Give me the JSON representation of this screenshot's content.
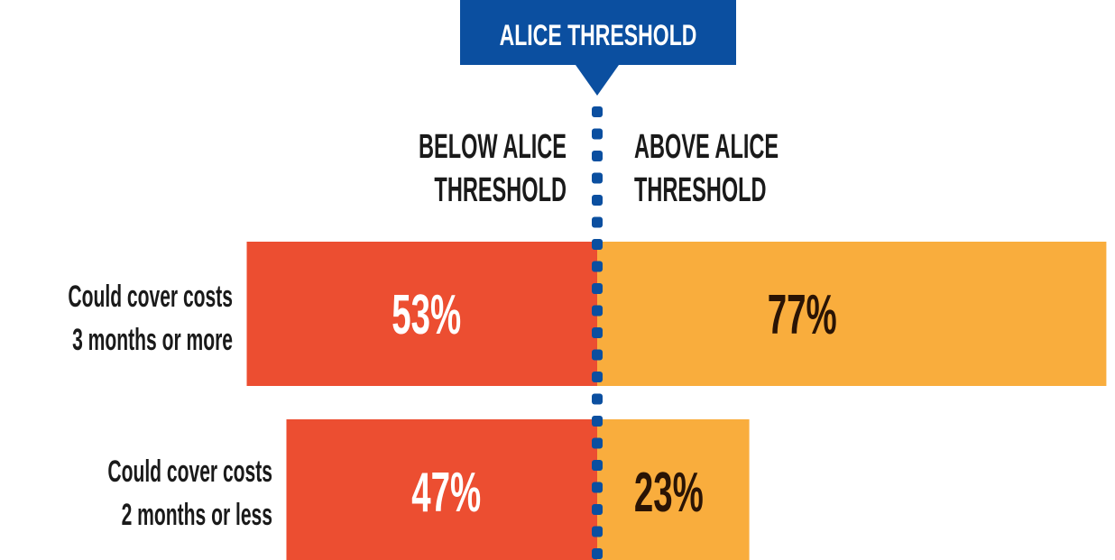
{
  "chart_data": {
    "type": "bar",
    "subtype": "diverging-horizontal",
    "threshold_label": "ALICE THRESHOLD",
    "column_headers": {
      "left": [
        "BELOW ALICE",
        "THRESHOLD"
      ],
      "right": [
        "ABOVE ALICE",
        "THRESHOLD"
      ]
    },
    "categories": [
      [
        "Could cover costs",
        "3 months or more"
      ],
      [
        "Could cover costs",
        "2 months or less"
      ]
    ],
    "series": [
      {
        "name": "BELOW ALICE THRESHOLD",
        "values": [
          53,
          47
        ],
        "labels": [
          "53%",
          "47%"
        ],
        "side": "left"
      },
      {
        "name": "ABOVE ALICE THRESHOLD",
        "values": [
          77,
          23
        ],
        "labels": [
          "77%",
          "23%"
        ],
        "side": "right"
      }
    ],
    "value_unit": "%",
    "colors": {
      "below": "#ec4e31",
      "above": "#f9ad3d",
      "threshold": "#0b4fa0",
      "below_label": "#ffffff",
      "above_label": "#2a1405",
      "text": "#1a1a1a"
    }
  }
}
